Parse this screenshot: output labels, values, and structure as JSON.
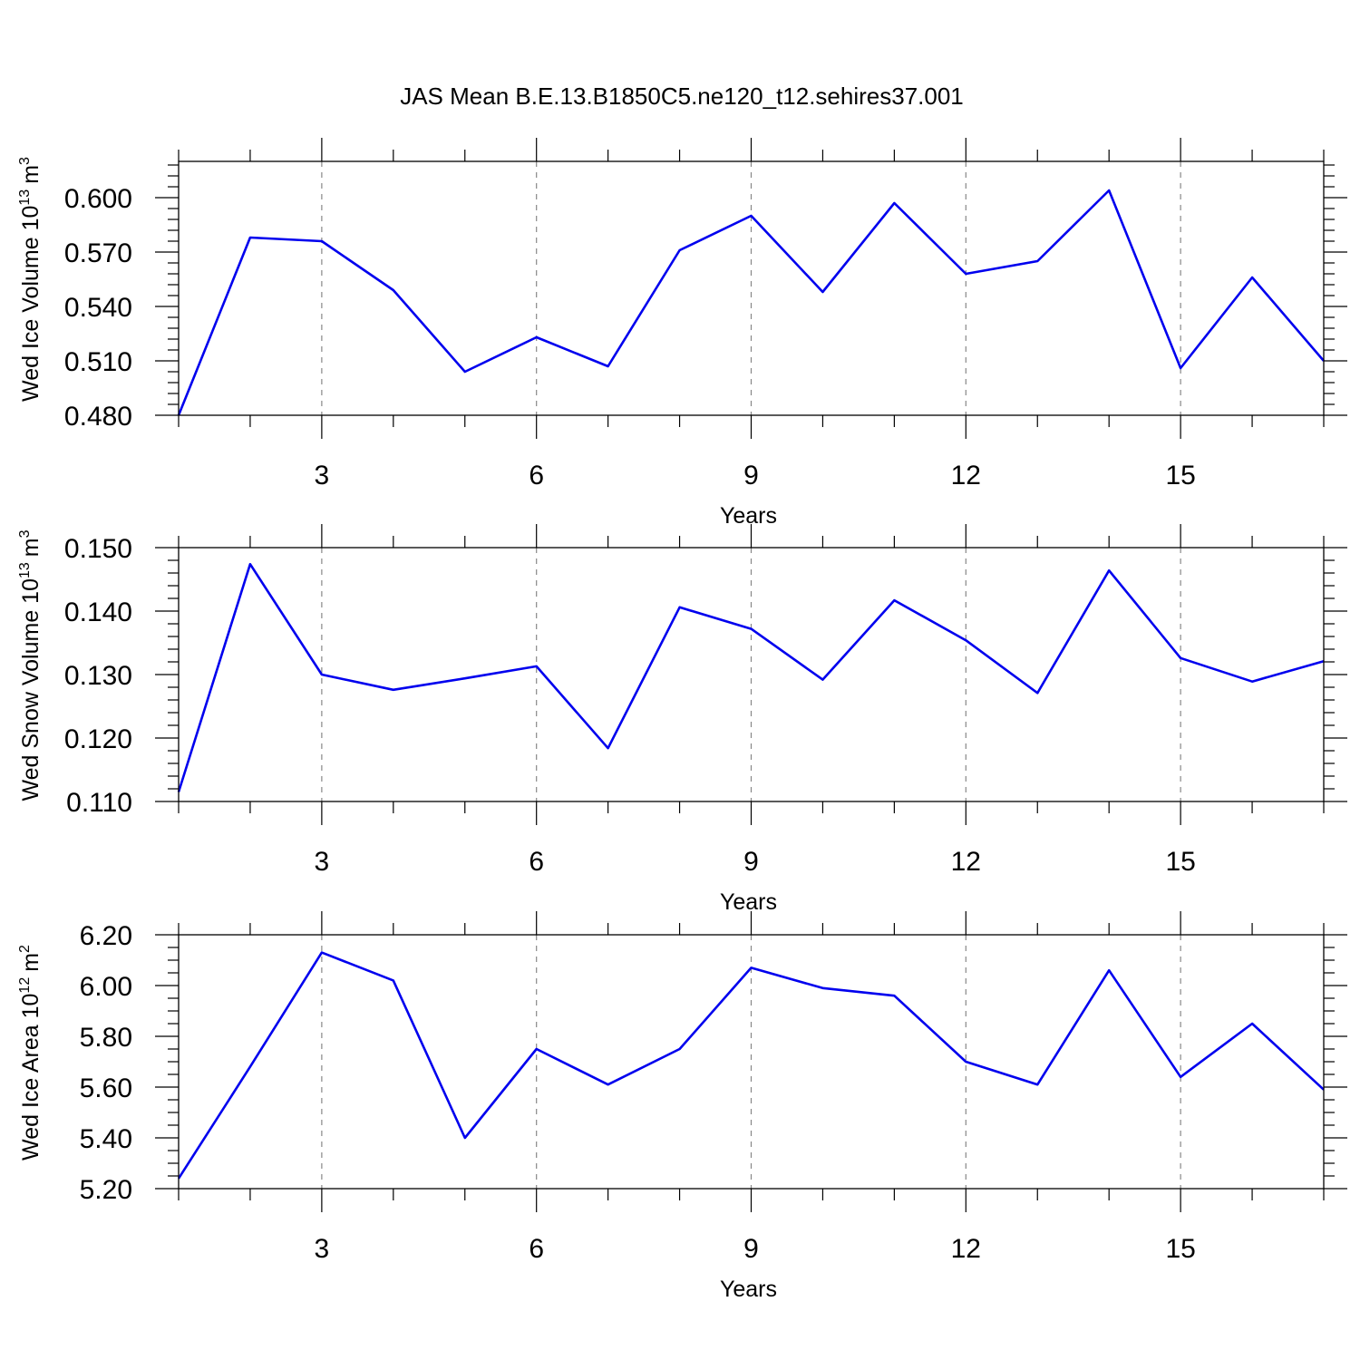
{
  "chart_data": {
    "type": "line",
    "title": "JAS Mean B.E.13.B1850C5.ne120_t12.sehires37.001",
    "line_color": "#0000ee",
    "x": [
      1,
      2,
      3,
      4,
      5,
      6,
      7,
      8,
      9,
      10,
      11,
      12,
      13,
      14,
      15,
      16,
      17
    ],
    "xlim": [
      1,
      17
    ],
    "xticks": [
      3,
      6,
      9,
      12,
      15
    ],
    "xlabel": "Years",
    "panels": [
      {
        "name": "ice-volume",
        "ylabel_main": "Wed Ice Volume 10",
        "ylabel_exp": "13",
        "ylabel_unit": "m",
        "ylabel_unit_exp": "3",
        "ylim": [
          0.48,
          0.62
        ],
        "yticks": [
          0.48,
          0.51,
          0.54,
          0.57,
          0.6
        ],
        "ytick_labels": [
          "0.480",
          "0.510",
          "0.540",
          "0.570",
          "0.600"
        ],
        "minor_step": 0.006,
        "values": [
          0.48,
          0.578,
          0.576,
          0.549,
          0.504,
          0.523,
          0.507,
          0.571,
          0.59,
          0.548,
          0.597,
          0.558,
          0.565,
          0.604,
          0.506,
          0.556,
          0.51
        ]
      },
      {
        "name": "snow-volume",
        "ylabel_main": "Wed Snow Volume 10",
        "ylabel_exp": "13",
        "ylabel_unit": "m",
        "ylabel_unit_exp": "3",
        "ylim": [
          0.11,
          0.15
        ],
        "yticks": [
          0.11,
          0.12,
          0.13,
          0.14,
          0.15
        ],
        "ytick_labels": [
          "0.110",
          "0.120",
          "0.130",
          "0.140",
          "0.150"
        ],
        "minor_step": 0.002,
        "values": [
          0.1115,
          0.1474,
          0.13,
          0.1276,
          0.1294,
          0.1313,
          0.1184,
          0.1406,
          0.1372,
          0.1292,
          0.1417,
          0.1354,
          0.1271,
          0.1464,
          0.1326,
          0.1289,
          0.1321
        ]
      },
      {
        "name": "ice-area",
        "ylabel_main": "Wed Ice Area 10",
        "ylabel_exp": "12",
        "ylabel_unit": "m",
        "ylabel_unit_exp": "2",
        "ylim": [
          5.2,
          6.2
        ],
        "yticks": [
          5.2,
          5.4,
          5.6,
          5.8,
          6.0,
          6.2
        ],
        "ytick_labels": [
          "5.20",
          "5.40",
          "5.60",
          "5.80",
          "6.00",
          "6.20"
        ],
        "minor_step": 0.05,
        "values": [
          5.24,
          5.68,
          6.13,
          6.02,
          5.4,
          5.75,
          5.61,
          5.75,
          6.07,
          5.99,
          5.96,
          5.7,
          5.61,
          6.06,
          5.64,
          5.85,
          5.59
        ]
      }
    ]
  }
}
